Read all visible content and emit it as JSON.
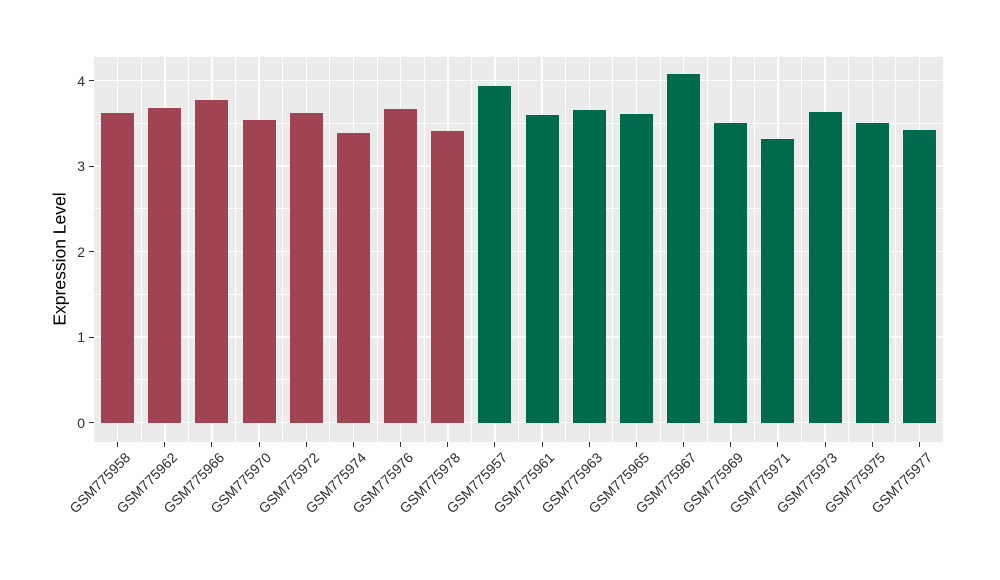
{
  "chart_data": {
    "type": "bar",
    "title": "",
    "xlabel": "",
    "ylabel": "Expression Level",
    "categories": [
      "GSM775958",
      "GSM775962",
      "GSM775966",
      "GSM775970",
      "GSM775972",
      "GSM775974",
      "GSM775976",
      "GSM775978",
      "GSM775957",
      "GSM775961",
      "GSM775963",
      "GSM775965",
      "GSM775967",
      "GSM775969",
      "GSM775971",
      "GSM775973",
      "GSM775975",
      "GSM775977"
    ],
    "values": [
      3.62,
      3.68,
      3.77,
      3.54,
      3.62,
      3.39,
      3.67,
      3.41,
      3.94,
      3.6,
      3.66,
      3.61,
      4.08,
      3.5,
      3.32,
      3.63,
      3.5,
      3.42
    ],
    "groups": [
      "a",
      "a",
      "a",
      "a",
      "a",
      "a",
      "a",
      "a",
      "b",
      "b",
      "b",
      "b",
      "b",
      "b",
      "b",
      "b",
      "b",
      "b"
    ],
    "group_colors": {
      "a": "#A04453",
      "b": "#006A4C"
    },
    "ylim": [
      0,
      4.28
    ],
    "y_major_ticks": [
      "0",
      "1",
      "2",
      "3",
      "4"
    ],
    "y_major_values": [
      0,
      1,
      2,
      3,
      4
    ],
    "y_minor_values": [
      0.5,
      1.5,
      2.5,
      3.5
    ],
    "x_label_rotation_deg": 45,
    "bar_width_fraction": 0.7,
    "grid": true,
    "legend_position": "none",
    "panel_background": "#EBEBEB",
    "grid_color": "#FFFFFF",
    "axis_text_color": "#2e2e2e",
    "axis_title_color": "#000000"
  }
}
